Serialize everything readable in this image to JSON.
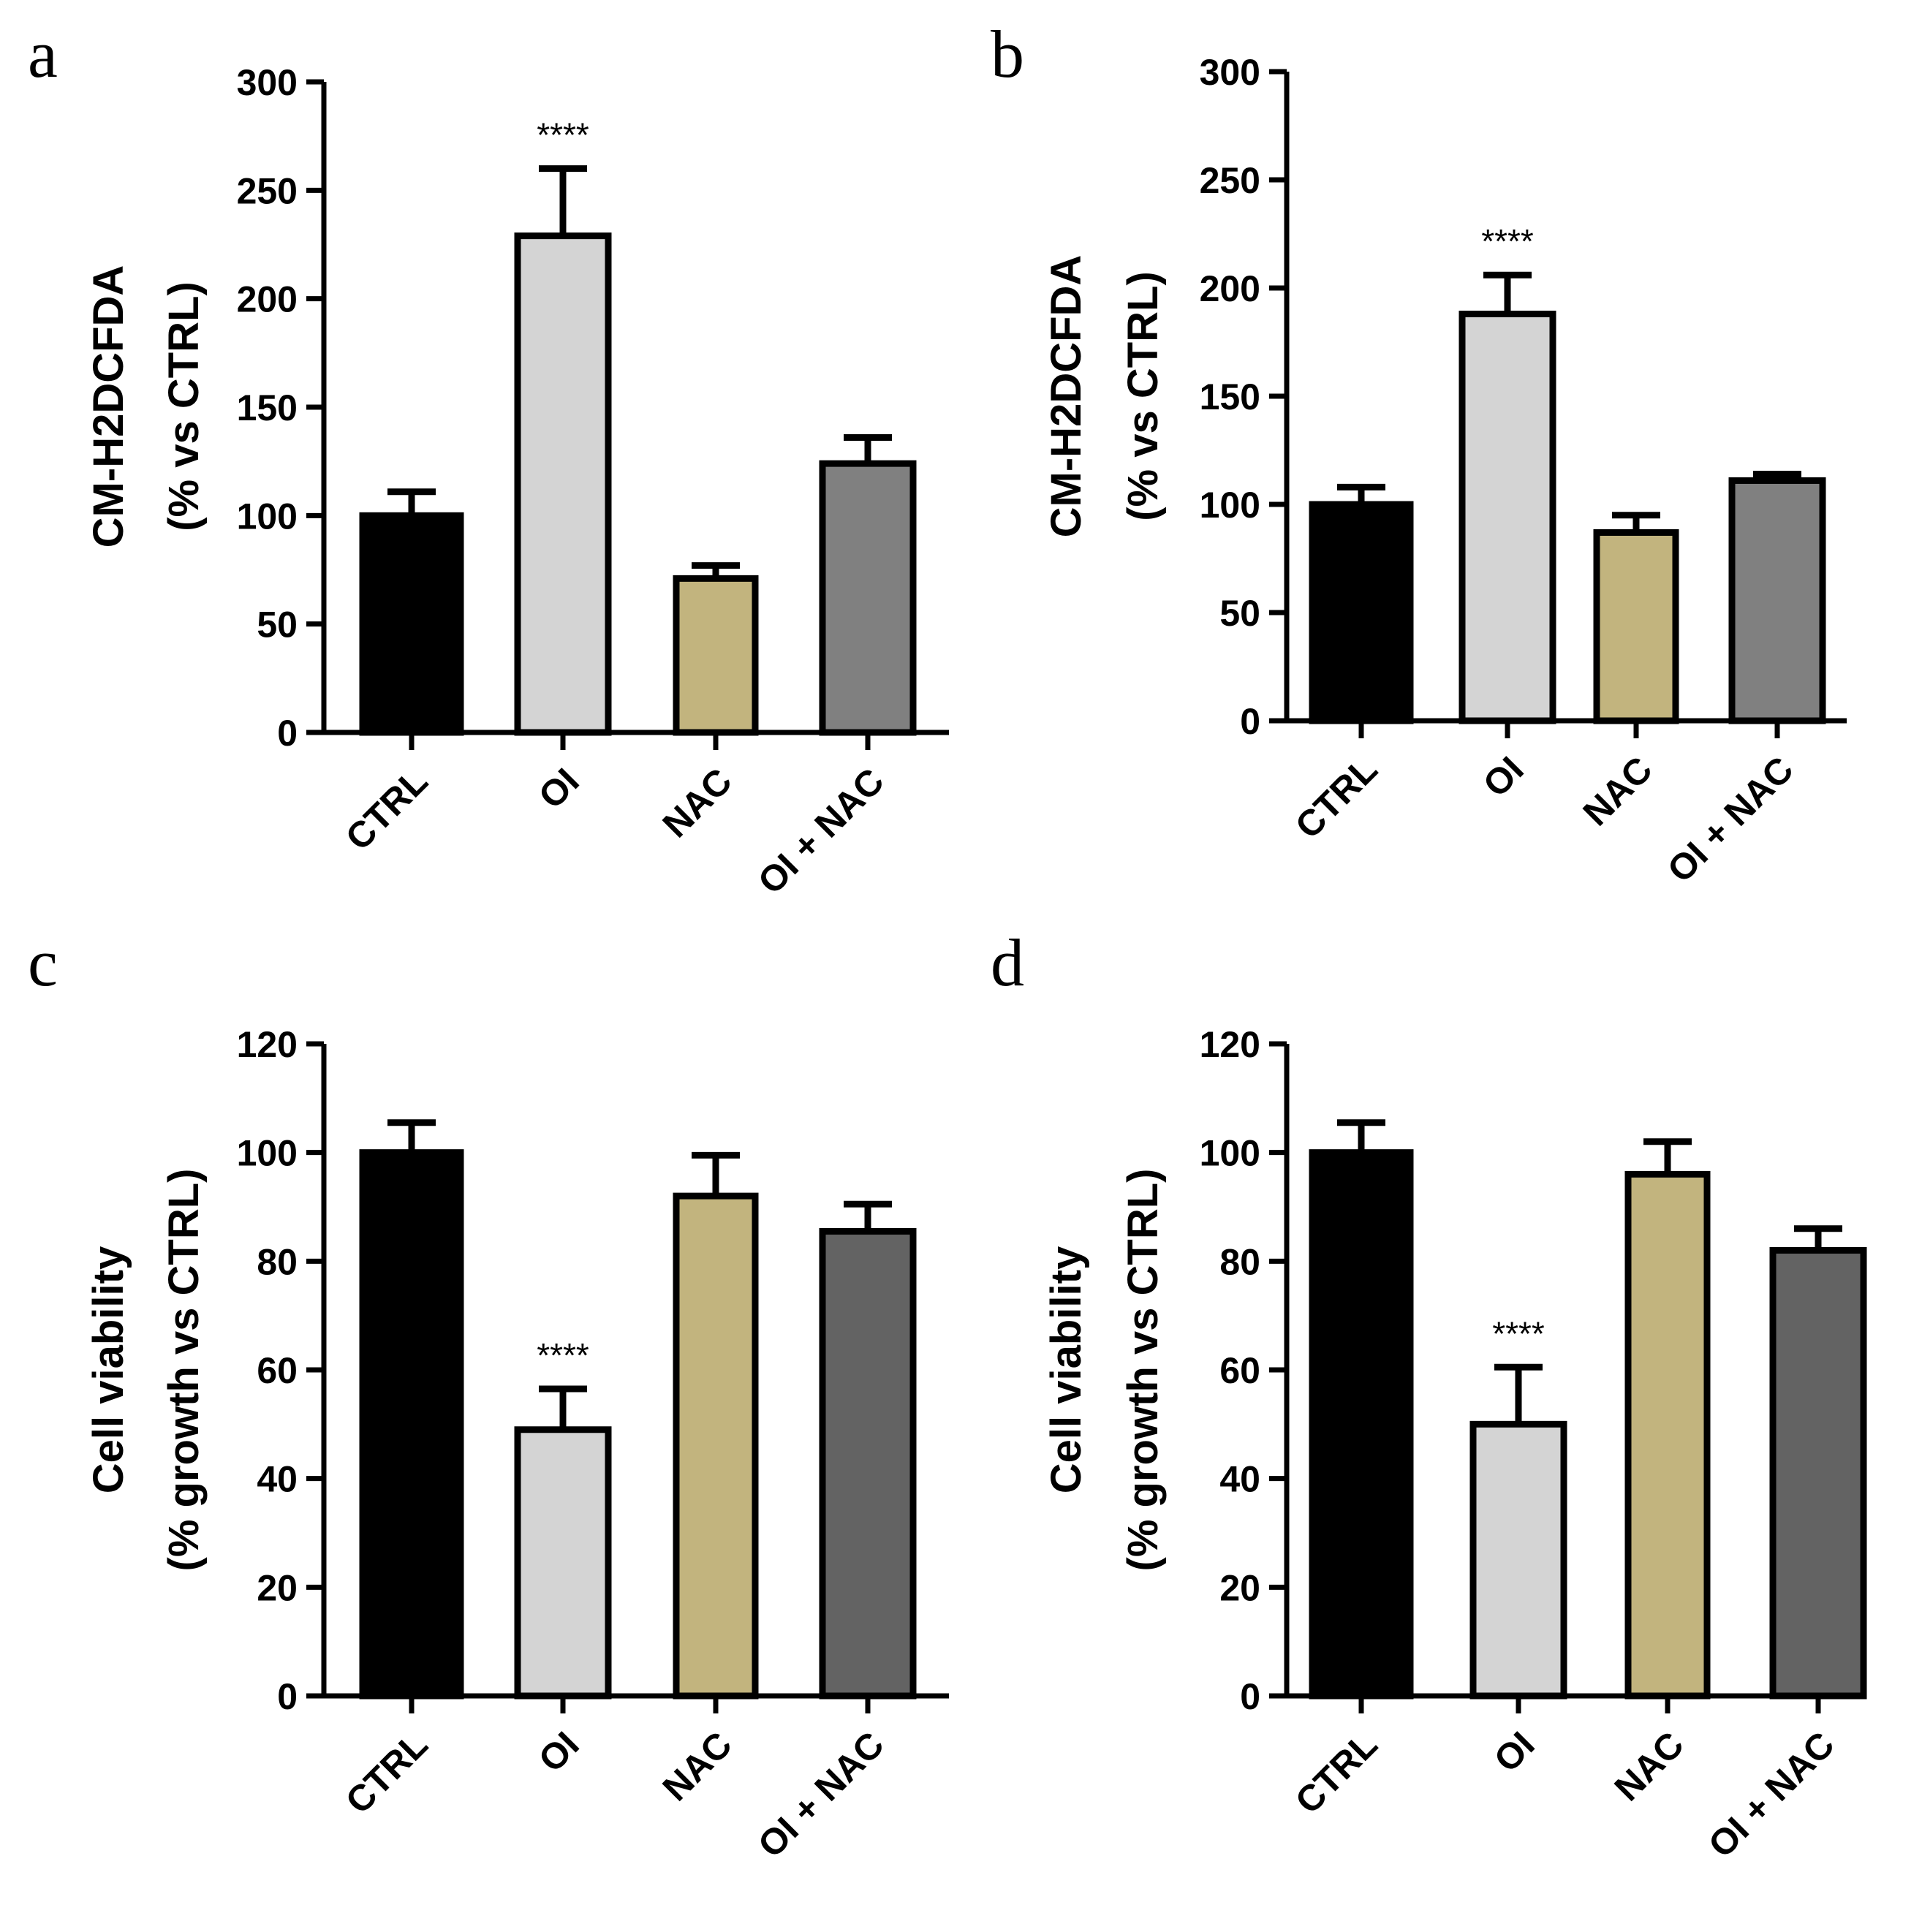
{
  "figure": {
    "panels": [
      "a",
      "b",
      "c",
      "d"
    ]
  },
  "chart_data": [
    {
      "type": "bar",
      "panel": "a",
      "categories": [
        "CTRL",
        "OI",
        "NAC",
        "OI + NAC"
      ],
      "values": [
        100,
        229,
        71,
        124
      ],
      "errors": [
        11,
        31,
        6,
        12
      ],
      "colors": [
        "#000000",
        "#d4d4d4",
        "#c2b47e",
        "#808080"
      ],
      "significance": [
        "",
        "****",
        "",
        ""
      ],
      "ylabel": "CM-H2DCFDA",
      "ylabel2": "(% vs CTRL)",
      "ylim": [
        0,
        300
      ],
      "yticks": [
        0,
        50,
        100,
        150,
        200,
        250,
        300
      ],
      "ytick_labels": [
        "0",
        "50",
        "100",
        "150",
        "200",
        "250",
        "300"
      ]
    },
    {
      "type": "bar",
      "panel": "b",
      "categories": [
        "CTRL",
        "OI",
        "NAC",
        "OI + NAC"
      ],
      "values": [
        100,
        188,
        87,
        111
      ],
      "errors": [
        8,
        18,
        8,
        3
      ],
      "colors": [
        "#000000",
        "#d4d4d4",
        "#c2b47e",
        "#808080"
      ],
      "significance": [
        "",
        "****",
        "",
        ""
      ],
      "ylabel": "CM-H2DCFDA",
      "ylabel2": "(% vs CTRL)",
      "ylim": [
        0,
        300
      ],
      "yticks": [
        0,
        50,
        100,
        150,
        200,
        250,
        300
      ],
      "ytick_labels": [
        "0",
        "50",
        "100",
        "150",
        "200",
        "250",
        "300"
      ]
    },
    {
      "type": "bar",
      "panel": "c",
      "categories": [
        "CTRL",
        "OI",
        "NAC",
        "OI + NAC"
      ],
      "values": [
        100,
        49,
        92,
        85.5
      ],
      "errors": [
        5.5,
        7.5,
        7.5,
        5
      ],
      "colors": [
        "#000000",
        "#d4d4d4",
        "#c2b47e",
        "#636363"
      ],
      "significance": [
        "",
        "****",
        "",
        ""
      ],
      "ylabel": "Cell viability",
      "ylabel2": "(% growth vs CTRL)",
      "ylim": [
        0,
        120
      ],
      "yticks": [
        0,
        20,
        40,
        60,
        80,
        100,
        120
      ],
      "ytick_labels": [
        "0",
        "20",
        "40",
        "60",
        "80",
        "100",
        "120"
      ]
    },
    {
      "type": "bar",
      "panel": "d",
      "categories": [
        "CTRL",
        "OI",
        "NAC",
        "OI + NAC"
      ],
      "values": [
        100,
        50,
        96,
        82
      ],
      "errors": [
        5.5,
        10.5,
        6,
        4
      ],
      "colors": [
        "#000000",
        "#d4d4d4",
        "#c2b47e",
        "#636363"
      ],
      "significance": [
        "",
        "****",
        "",
        ""
      ],
      "ylabel": "Cell viability",
      "ylabel2": "(% growth vs CTRL)",
      "ylim": [
        0,
        120
      ],
      "yticks": [
        0,
        20,
        40,
        60,
        80,
        100,
        120
      ],
      "ytick_labels": [
        "0",
        "20",
        "40",
        "60",
        "80",
        "100",
        "120"
      ]
    }
  ]
}
